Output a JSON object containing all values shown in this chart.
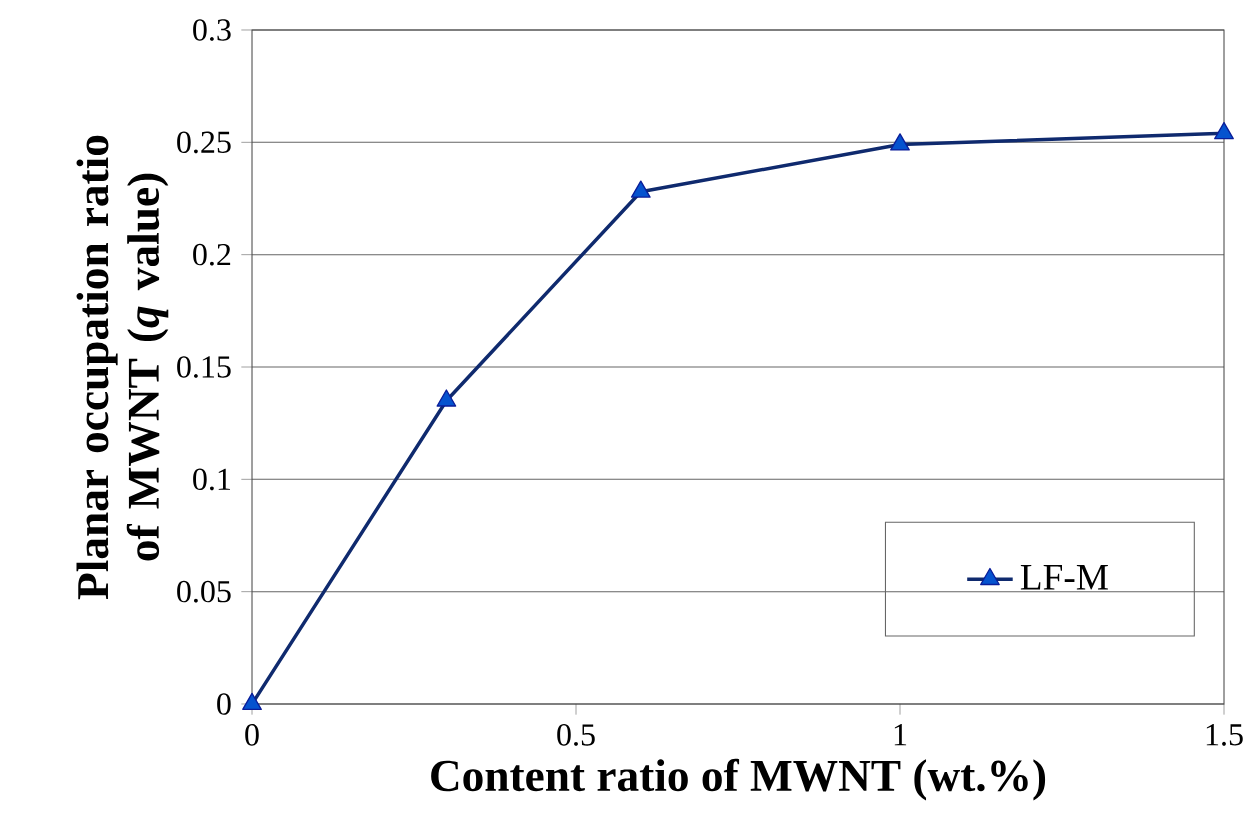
{
  "chart_data": {
    "type": "line",
    "xlabel": "Content ratio of MWNT (wt.%)",
    "ylabel": "Planar occupation ratio of MWNT (*q* value)",
    "x": [
      0,
      0.3,
      0.6,
      1,
      1.5
    ],
    "series": [
      {
        "name": "LF-M",
        "color": "#0f2a6e",
        "values": [
          0,
          0.135,
          0.228,
          0.249,
          0.254
        ]
      }
    ],
    "xlim": [
      0,
      1.5
    ],
    "xticks": [
      0,
      0.5,
      1,
      1.5
    ],
    "ylim": [
      0,
      0.3
    ],
    "yticks": [
      0,
      0.05,
      0.1,
      0.15,
      0.2,
      0.25,
      0.3
    ],
    "grid": "y",
    "legend": "bottom right",
    "marker": "triangle",
    "line_style": "solid"
  }
}
